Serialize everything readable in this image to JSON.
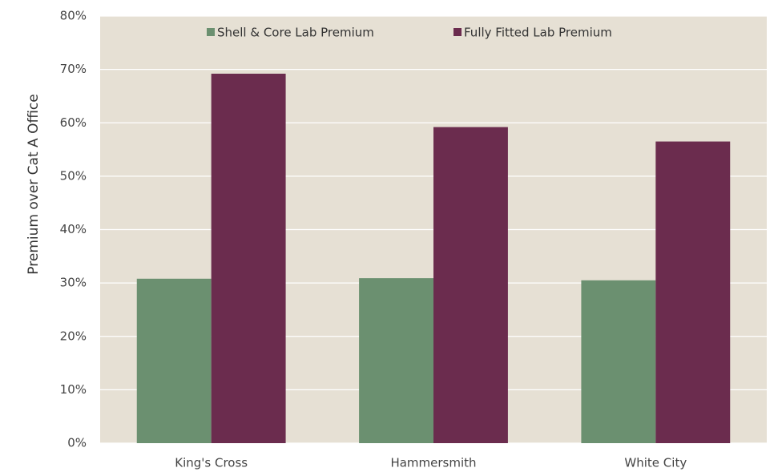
{
  "chart_data": {
    "type": "bar",
    "y_label": "Premium over Cat A Office",
    "categories": [
      "King's Cross",
      "Hammersmith",
      "White City"
    ],
    "series": [
      {
        "name": "Shell & Core Lab Premium",
        "color": "#6b9070",
        "values": [
          30.8,
          30.9,
          30.5
        ]
      },
      {
        "name": "Fully Fitted Lab Premium",
        "color": "#6b2c4e",
        "values": [
          69.2,
          59.2,
          56.5
        ]
      }
    ],
    "ylim": [
      0,
      80
    ],
    "yticks": [
      {
        "value": 0,
        "label": "0%"
      },
      {
        "value": 10,
        "label": "10%"
      },
      {
        "value": 20,
        "label": "20%"
      },
      {
        "value": 30,
        "label": "30%"
      },
      {
        "value": 40,
        "label": "40%"
      },
      {
        "value": 50,
        "label": "50%"
      },
      {
        "value": 60,
        "label": "60%"
      },
      {
        "value": 70,
        "label": "70%"
      },
      {
        "value": 80,
        "label": "80%"
      }
    ],
    "grid": true,
    "legend": "top",
    "background": "#e6e0d4"
  }
}
